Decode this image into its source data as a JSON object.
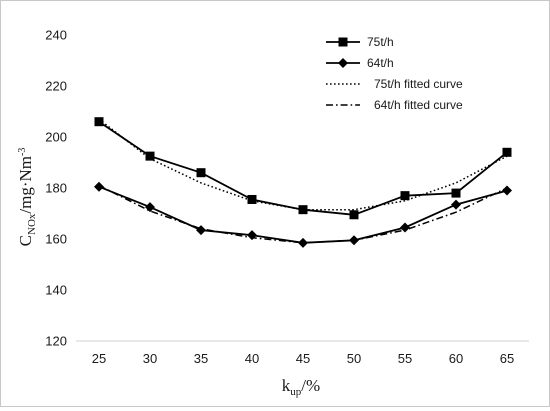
{
  "chart_data": {
    "type": "line",
    "x": [
      25,
      30,
      35,
      40,
      45,
      50,
      55,
      60,
      65
    ],
    "series": [
      {
        "name": "75t/h",
        "values": [
          206,
          192.5,
          186,
          175.5,
          171.5,
          169.5,
          177,
          178,
          194
        ],
        "marker": "square",
        "line": "solid",
        "color": "#000000"
      },
      {
        "name": "64t/h",
        "values": [
          180.5,
          172.5,
          163.5,
          161.5,
          158.5,
          159.5,
          164.5,
          173.5,
          179
        ],
        "marker": "diamond",
        "line": "solid",
        "color": "#000000"
      },
      {
        "name": "75t/h fitted curve",
        "values": [
          207,
          191.5,
          182,
          175,
          171.5,
          171.5,
          175,
          182,
          192.5
        ],
        "marker": "none",
        "line": "dotted",
        "color": "#000000"
      },
      {
        "name": "64t/h fitted curve",
        "values": [
          181,
          171,
          164,
          160.5,
          158.5,
          159.5,
          163.5,
          170.5,
          180
        ],
        "marker": "none",
        "line": "dashdot",
        "color": "#000000"
      }
    ],
    "xlabel": {
      "main": "k",
      "sub": "up",
      "rest": "/%"
    },
    "ylabel": {
      "main": "C",
      "sub": "NOx",
      "mid": "/mg·Nm",
      "sup": "-3"
    },
    "ylim": [
      120,
      240
    ],
    "yticks": [
      120,
      140,
      160,
      180,
      200,
      220,
      240
    ],
    "xticks": [
      25,
      30,
      35,
      40,
      45,
      50,
      55,
      60,
      65
    ],
    "grid": false,
    "legend_position": "top-right"
  }
}
